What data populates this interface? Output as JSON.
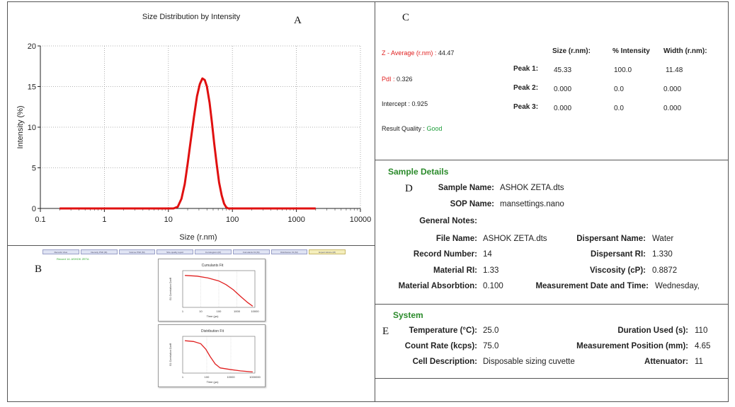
{
  "panel_letters": {
    "a": "A",
    "b": "B",
    "c": "C",
    "d": "D",
    "e": "E"
  },
  "chart_data": {
    "type": "line",
    "title": "Size Distribution by Intensity",
    "xlabel": "Size (r.nm)",
    "ylabel": "Intensity (%)",
    "xscale": "log",
    "xlim": [
      0.1,
      10000
    ],
    "ylim": [
      0,
      20
    ],
    "xticks": [
      "0.1",
      "1",
      "10",
      "100",
      "1000",
      "10000"
    ],
    "yticks": [
      "0",
      "5",
      "10",
      "15",
      "20"
    ],
    "grid": true,
    "series": [
      {
        "color": "#e01010",
        "x": [
          0.2,
          1,
          5,
          12,
          14,
          16,
          18,
          20,
          22,
          25,
          28,
          31,
          34,
          37,
          40,
          44,
          48,
          52,
          57,
          62,
          68,
          74,
          80,
          86,
          100,
          500,
          2000
        ],
        "y": [
          0,
          0,
          0,
          0,
          0.2,
          1.2,
          3.0,
          5.5,
          8.0,
          11.2,
          13.8,
          15.3,
          16.0,
          15.8,
          15.0,
          13.0,
          10.5,
          8.0,
          5.4,
          3.2,
          1.6,
          0.6,
          0.15,
          0,
          0,
          0,
          0
        ]
      }
    ]
  },
  "result_summary": {
    "z_average_label": "Z - Average (r.nm) :",
    "z_average_value": "44.47",
    "pdi_label": "PdI :",
    "pdi_value": "0.326",
    "intercept_label": "Intercept :",
    "intercept_value": "0.925",
    "quality_label": "Result Quality :",
    "quality_value": "Good",
    "red_color": "#e02020",
    "good_color": "#1e9e3a"
  },
  "peaks": {
    "headers": [
      "Size (r.nm):",
      "% Intensity",
      "Width (r.nm):"
    ],
    "rows": [
      {
        "label": "Peak 1:",
        "size": "45.33",
        "intensity": "100.0",
        "width": "11.48"
      },
      {
        "label": "Peak 2:",
        "size": "0.000",
        "intensity": "0.0",
        "width": "0.000"
      },
      {
        "label": "Peak 3:",
        "size": "0.000",
        "intensity": "0.0",
        "width": "0.000"
      }
    ]
  },
  "sample_details": {
    "title": "Sample Details",
    "sample_name_label": "Sample Name:",
    "sample_name": "ASHOK ZETA.dts",
    "sop_label": "SOP Name:",
    "sop": "mansettings.nano",
    "notes_label": "General Notes:",
    "file_name_label": "File Name:",
    "file_name": "ASHOK ZETA.dts",
    "dispersant_name_label": "Dispersant Name:",
    "dispersant_name": "Water",
    "record_label": "Record Number:",
    "record": "14",
    "dispersant_ri_label": "Dispersant RI:",
    "dispersant_ri": "1.330",
    "material_ri_label": "Material RI:",
    "material_ri": "1.33",
    "viscosity_label": "Viscosity (cP):",
    "viscosity": "0.8872",
    "absorption_label": "Material Absorbtion:",
    "absorption": "0.100",
    "date_label": "Measurement Date and Time:",
    "date": "Wednesday,"
  },
  "system": {
    "title": "System",
    "temperature_label": "Temperature (°C):",
    "temperature": "25.0",
    "duration_label": "Duration Used (s):",
    "duration": "110",
    "count_rate_label": "Count Rate (kcps):",
    "count_rate": "75.0",
    "position_label": "Measurement Position (mm):",
    "position": "4.65",
    "cell_label": "Cell Description:",
    "cell": "Disposable sizing cuvette",
    "attenuator_label": "Attenuator:",
    "attenuator": "11"
  },
  "panel_b": {
    "tabs": [
      "Records View",
      "Intensity PSD (M)",
      "Volume PSD (M)",
      "Size quality report",
      "Correlogram (M)",
      "Cumulants Fit (M)",
      "Distribution Fit (M)",
      "Expert Advice (M)"
    ],
    "status_text": "Record 14: ASHOK ZETA",
    "status_color": "#2eaa2e",
    "cumulants_title": "Cumulants Fit",
    "distribution_title": "Distribution Fit",
    "mini_xlabel": "Time (µs)",
    "mini_ylabel": "G1 Correlation Coeff",
    "cumulants_xticks": [
      "1",
      "10",
      "100",
      "1000",
      "10000"
    ],
    "distribution_xticks": [
      "1",
      "100",
      "10000",
      "1000000"
    ]
  }
}
